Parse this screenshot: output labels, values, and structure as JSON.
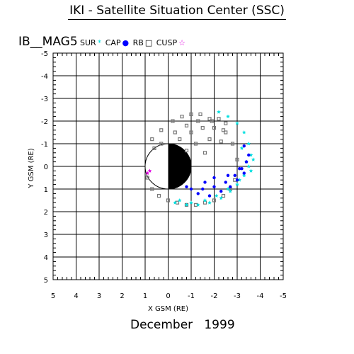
{
  "title": "IKI - Satellite Situation Center (SSC)",
  "satellite": "IB__MAG5",
  "legend": [
    {
      "label": "SUR",
      "symbol": "*",
      "color": "#00e0e0"
    },
    {
      "label": "CAP",
      "symbol": "●",
      "color": "#0000ff"
    },
    {
      "label": "RB",
      "symbol": "□",
      "color": "#000000"
    },
    {
      "label": "CUSP",
      "symbol": "☆",
      "color": "#e000e0"
    }
  ],
  "date": "December   1999",
  "colors": {
    "sur": "#00e0e0",
    "cap": "#0000ff",
    "rb": "#777777",
    "cusp": "#e000e0",
    "earth": "#000000"
  },
  "chart_data": {
    "type": "scatter",
    "xlabel": "X GSM (RE)",
    "ylabel": "Y GSM (RE)",
    "xlim": [
      5,
      -5
    ],
    "ylim": [
      -5,
      5
    ],
    "x_ticks": [
      5,
      4,
      3,
      2,
      1,
      0,
      -1,
      -2,
      -3,
      -4,
      -5
    ],
    "y_ticks": [
      -5,
      -4,
      -3,
      -2,
      -1,
      0,
      1,
      2,
      3,
      4,
      5
    ],
    "x_tick_labels": [
      "5",
      "4",
      "3",
      "2",
      "1",
      "0",
      "-1",
      "-2",
      "-3",
      "-4",
      "-5"
    ],
    "y_tick_labels": [
      "-5",
      "-4",
      "-3",
      "-2",
      "-1",
      "0",
      "1",
      "2",
      "3",
      "4",
      "5"
    ],
    "grid": true,
    "earth": {
      "x": 0,
      "y": 0,
      "radius": 1,
      "night_side": "x<0"
    },
    "series": [
      {
        "name": "RB",
        "marker": "square",
        "color": "#777777",
        "x": [
          0.9,
          0.7,
          0.4,
          0.0,
          -0.4,
          -0.8,
          -1.2,
          -1.6,
          -2.0,
          -2.4,
          -2.7,
          -2.9,
          -3.0,
          -2.8,
          -2.4,
          -1.9,
          -1.4,
          -1.0,
          -0.6,
          -0.2,
          0.3,
          0.7,
          0.6,
          0.3,
          -0.3,
          -0.8,
          -1.3,
          -1.8,
          -2.2,
          -2.5,
          -0.5,
          -1.0,
          -1.5,
          -2.0,
          -2.5,
          -1.2,
          -1.8,
          -2.3,
          -0.8,
          -1.6
        ],
        "y": [
          0.5,
          1.0,
          1.3,
          1.5,
          1.6,
          1.7,
          1.7,
          1.6,
          1.5,
          1.3,
          1.0,
          0.6,
          -0.3,
          -1.0,
          -1.6,
          -2.0,
          -2.3,
          -2.3,
          -2.2,
          -2.0,
          -1.6,
          -1.2,
          -0.8,
          -1.0,
          -1.5,
          -1.8,
          -2.0,
          -2.1,
          -2.1,
          -1.9,
          -1.2,
          -1.5,
          -1.7,
          -1.7,
          -1.5,
          -1.0,
          -1.2,
          -1.1,
          -0.7,
          -0.6
        ]
      },
      {
        "name": "SUR",
        "marker": "star",
        "color": "#00e0e0",
        "x": [
          -0.3,
          -0.8,
          -1.3,
          -1.8,
          -2.3,
          -2.7,
          -3.0,
          -3.3,
          -3.5,
          -3.6,
          -3.5,
          -3.3,
          -3.0,
          -2.6,
          -2.2,
          -3.2,
          -3.4,
          -3.6,
          -3.7,
          -0.5,
          -1.0,
          -1.6,
          -2.1,
          -2.6,
          -3.1
        ],
        "y": [
          1.6,
          1.7,
          1.7,
          1.6,
          1.4,
          1.1,
          0.8,
          0.4,
          0.0,
          -0.5,
          -1.0,
          -1.5,
          -1.9,
          -2.2,
          -2.4,
          -0.8,
          -0.2,
          0.2,
          -0.3,
          1.5,
          1.6,
          1.5,
          1.3,
          1.0,
          0.6
        ]
      },
      {
        "name": "CAP",
        "marker": "dot",
        "color": "#0000ff",
        "x": [
          -1.0,
          -1.5,
          -2.0,
          -2.5,
          -2.9,
          -3.2,
          -3.4,
          -3.5,
          -3.3,
          -1.3,
          -1.8,
          -2.3,
          -2.7,
          -3.0,
          -0.8,
          -1.6,
          -2.6,
          -3.1,
          -3.3,
          -2.0
        ],
        "y": [
          1.0,
          1.0,
          0.9,
          0.7,
          0.4,
          0.1,
          -0.2,
          -0.5,
          -0.9,
          1.2,
          1.3,
          1.1,
          0.9,
          0.6,
          0.9,
          0.7,
          0.4,
          0.1,
          0.3,
          0.5
        ]
      },
      {
        "name": "CUSP",
        "marker": "star",
        "color": "#e000e0",
        "x": [
          0.8,
          0.9
        ],
        "y": [
          0.2,
          0.3
        ]
      }
    ]
  }
}
